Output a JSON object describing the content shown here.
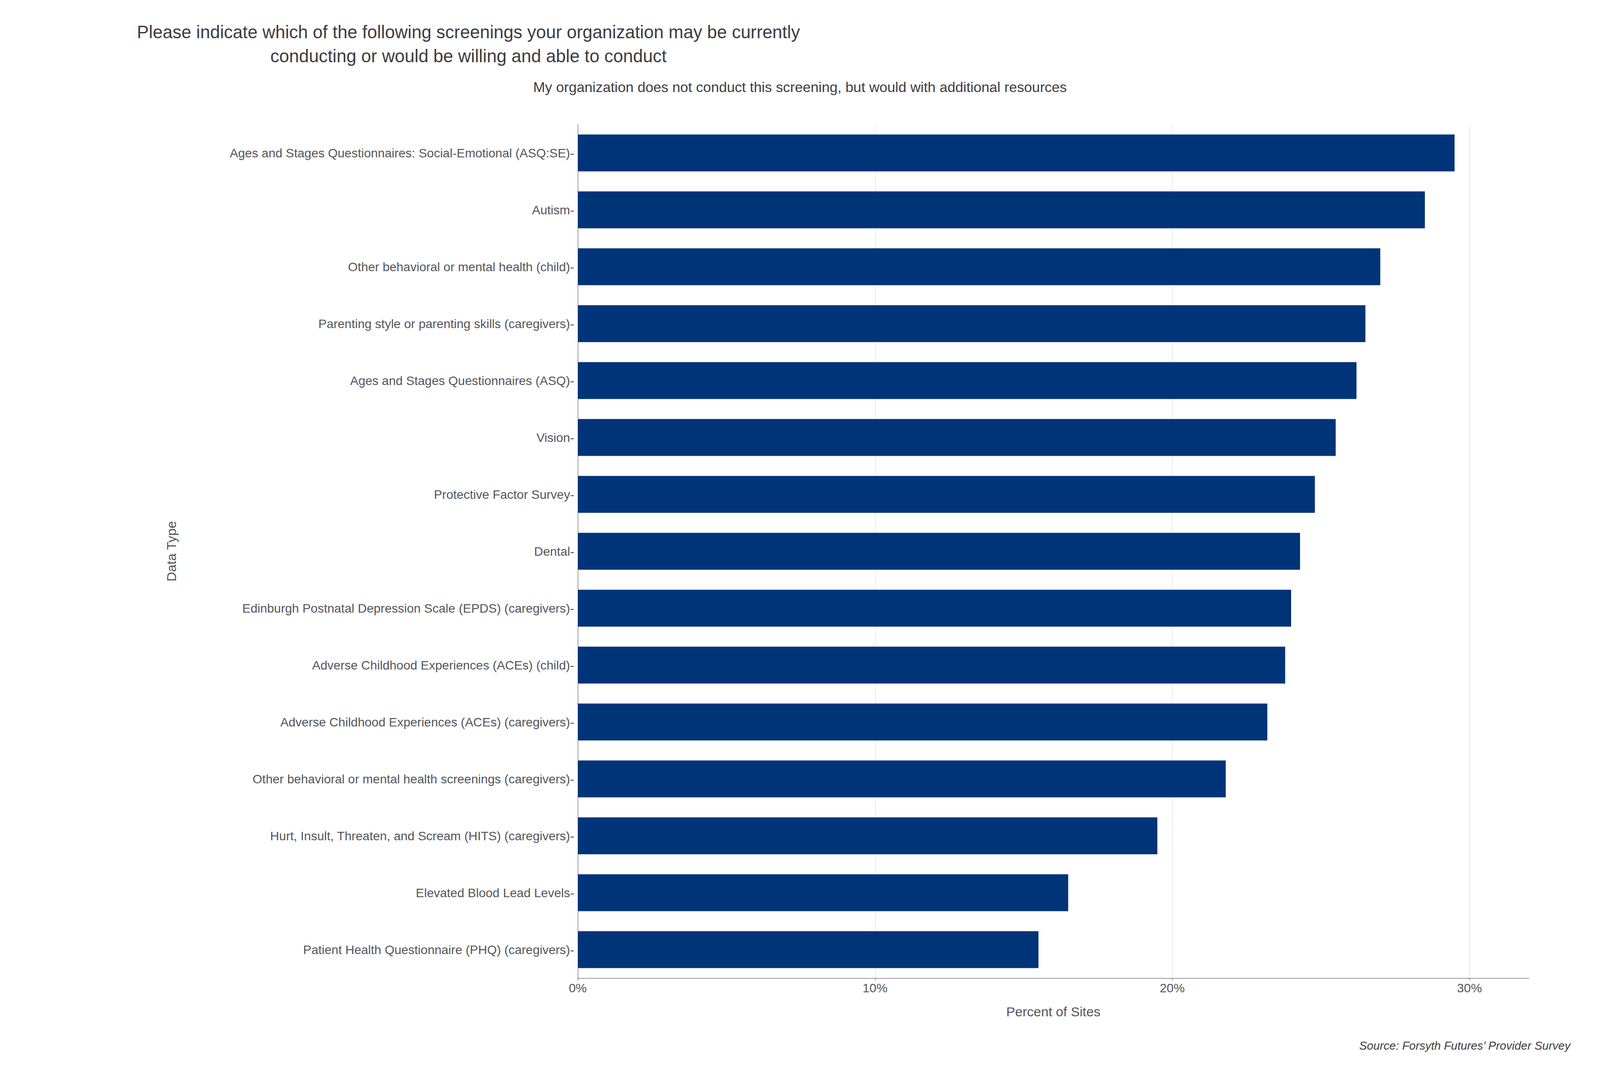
{
  "chart_data": {
    "type": "bar",
    "orientation": "horizontal",
    "title": "Please indicate which of the following screenings your organization may be currently\nconducting or would be willing and able to conduct",
    "subtitle": "My organization does not conduct this screening, but would with additional resources",
    "xlabel": "Percent of Sites",
    "ylabel": "Data Type",
    "source": "Source: Forsyth Futures’ Provider Survey",
    "categories": [
      "Ages and Stages Questionnaires: Social-Emotional (ASQ:SE)-",
      "Autism-",
      "Other behavioral or mental health (child)-",
      "Parenting style or parenting skills (caregivers)-",
      "Ages and Stages Questionnaires (ASQ)-",
      "Vision-",
      "Protective Factor Survey-",
      "Dental-",
      "Edinburgh Postnatal Depression Scale (EPDS) (caregivers)-",
      "Adverse Childhood Experiences (ACEs) (child)-",
      "Adverse Childhood Experiences (ACEs) (caregivers)-",
      "Other behavioral or mental health screenings (caregivers)-",
      "Hurt, Insult, Threaten, and Scream (HITS) (caregivers)-",
      "Elevated Blood Lead Levels-",
      "Patient Health Questionnaire (PHQ) (caregivers)-"
    ],
    "values": [
      0.295,
      0.285,
      0.27,
      0.265,
      0.262,
      0.255,
      0.248,
      0.243,
      0.24,
      0.238,
      0.232,
      0.218,
      0.195,
      0.165,
      0.155
    ],
    "color": "#003478",
    "xlim": [
      0,
      0.32
    ],
    "xticks": [
      {
        "value": 0.0,
        "label": "0%"
      },
      {
        "value": 0.1,
        "label": "10%"
      },
      {
        "value": 0.2,
        "label": "20%"
      },
      {
        "value": 0.3,
        "label": "30%"
      }
    ],
    "grid": true
  }
}
